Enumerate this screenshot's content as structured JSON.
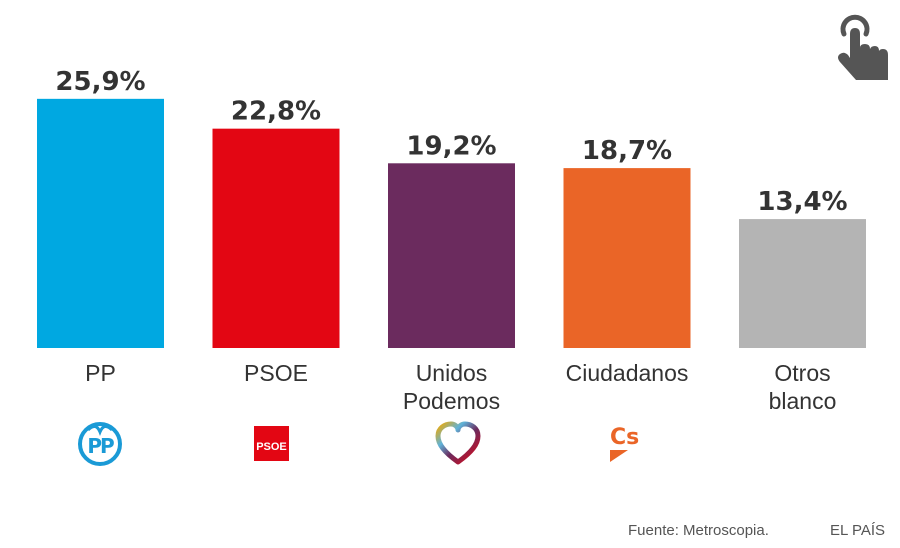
{
  "chart_data": {
    "type": "bar",
    "title": "",
    "xlabel": "",
    "ylabel": "",
    "ylim": [
      0,
      26
    ],
    "grid": false,
    "categories": [
      "PP",
      "PSOE",
      "Unidos Podemos",
      "Ciudadanos",
      "Otros blanco"
    ],
    "category_lines": [
      [
        "PP"
      ],
      [
        "PSOE"
      ],
      [
        "Unidos",
        "Podemos"
      ],
      [
        "Ciudadanos"
      ],
      [
        "Otros",
        "blanco"
      ]
    ],
    "values": [
      25.9,
      22.8,
      19.2,
      18.7,
      13.4
    ],
    "value_labels": [
      "25,9%",
      "22,8%",
      "19,2%",
      "18,7%",
      "13,4%"
    ],
    "colors": [
      "#00a8e1",
      "#e30613",
      "#6b2b5e",
      "#ea6527",
      "#b4b4b4"
    ],
    "logos": [
      "pp-logo",
      "psoe-logo",
      "podemos-heart-logo",
      "ciudadanos-logo",
      null
    ]
  },
  "logo_text": {
    "pp": "PP",
    "psoe": "PSOE",
    "cs": "Cs"
  },
  "footer": {
    "source": "Fuente: Metroscopia.",
    "brand": "EL PAÍS"
  },
  "icons": {
    "interaction": "hand-pointer-icon",
    "interaction_color": "#555555"
  }
}
